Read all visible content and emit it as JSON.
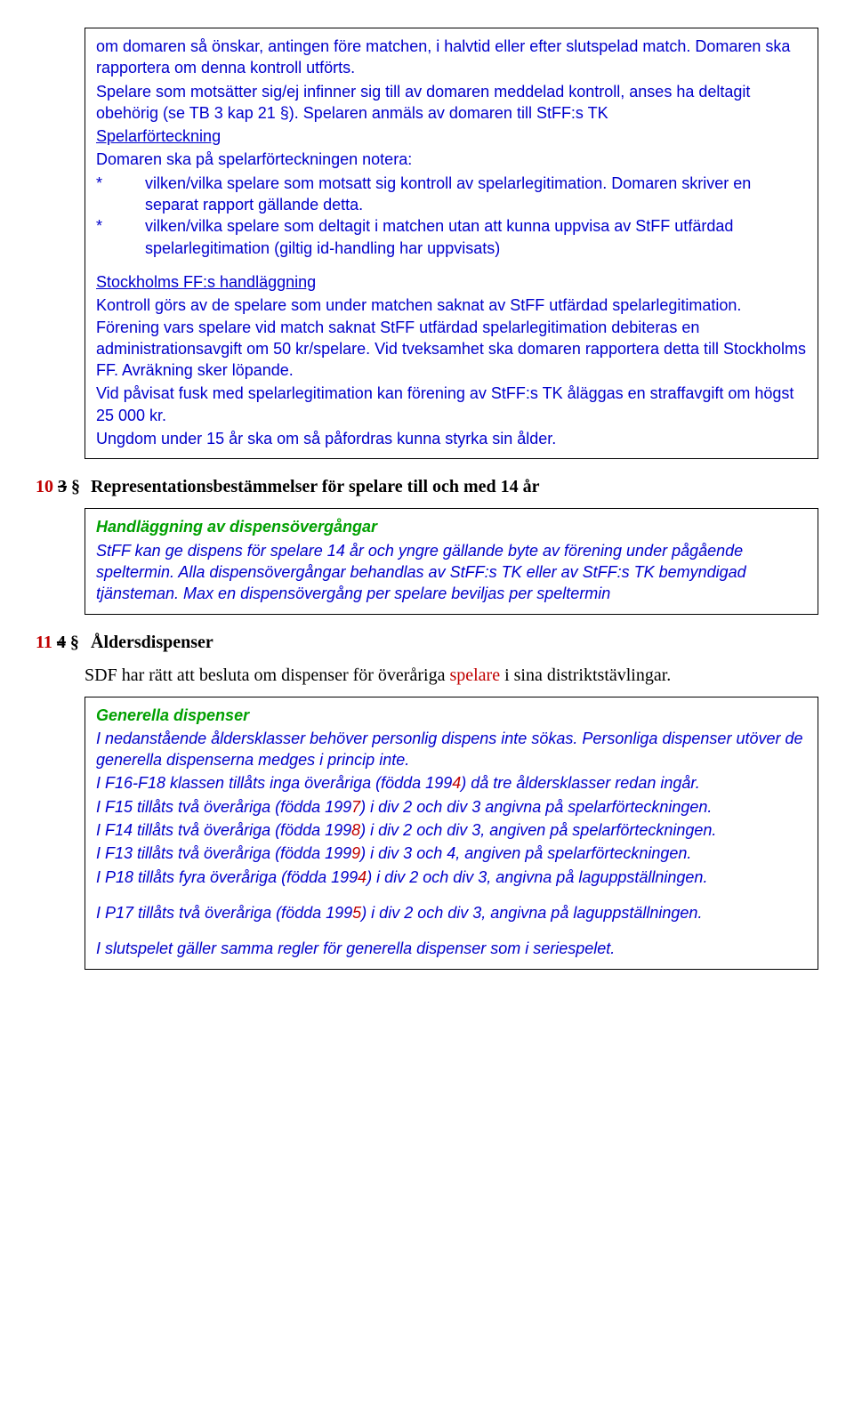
{
  "colors": {
    "blue": "#0000cc",
    "green": "#00a000",
    "red": "#c00000",
    "black": "#000000",
    "box_border": "#000000",
    "background": "#ffffff"
  },
  "typography": {
    "body_family": "Arial",
    "body_size_pt": 13.5,
    "heading_family": "Times New Roman",
    "heading_size_pt": 15
  },
  "box1": {
    "p1": "om domaren så önskar, antingen före matchen, i halvtid eller efter slutspelad match. Domaren ska rapportera om denna kontroll utförts.",
    "p2": "Spelare som motsätter sig/ej infinner sig till av domaren meddelad kontroll, anses ha deltagit obehörig (se TB 3 kap 21 §). Spelaren anmäls av domaren till StFF:s TK",
    "h_spelar": "Spelarförteckning",
    "p3": "Domaren ska på spelarförteckningen notera:",
    "star": "*",
    "s1a": "vilken/vilka spelare som motsatt sig kontroll av spelarlegitimation. Domaren skriver en separat rapport gällande detta.",
    "s1b": "vilken/vilka spelare som deltagit i matchen utan att kunna uppvisa av StFF utfärdad spelarlegitimation (giltig id-handling har uppvisats)",
    "h_stock": "Stockholms FF:s handläggning",
    "p4": "Kontroll görs av de spelare som under matchen saknat av StFF utfärdad spelarlegitimation. Förening vars spelare vid match saknat StFF utfärdad spelarlegitimation debiteras en administrationsavgift om 50 kr/spelare. Vid tveksamhet ska domaren rapportera detta till Stockholms FF. Avräkning sker löpande.",
    "p5": "Vid påvisat fusk med spelarlegitimation kan förening av StFF:s TK åläggas en straffavgift om högst 25 000 kr.",
    "p6": "Ungdom under 15 år ska om så påfordras kunna styrka sin ålder."
  },
  "sec10": {
    "num_new": "10",
    "num_old": "3",
    "sym": "§",
    "title": "Representationsbestämmelser för spelare till och med 14 år"
  },
  "box2": {
    "h": "Handläggning av dispensövergångar",
    "p": "StFF kan ge dispens för spelare 14 år och yngre gällande byte av förening under pågående speltermin. Alla dispensövergångar behandlas av StFF:s TK eller av StFF:s TK bemyndigad tjänsteman. Max en dispensövergång per spelare beviljas per speltermin"
  },
  "sec11": {
    "num_new": "11",
    "num_old": "4",
    "sym": "§",
    "title": "Åldersdispenser"
  },
  "sdf": {
    "pre": "SDF har rätt att besluta om dispenser för överåriga ",
    "word": "spelare",
    "post": " i sina distriktstävlingar."
  },
  "box3": {
    "h": "Generella dispenser",
    "p1a": "I nedanstående åldersklasser behöver personlig dispens inte sökas. Personliga dispenser utöver de generella dispenserna medges i princip inte.",
    "l_f16_a": "I F16-F18 klassen tillåts inga överåriga (födda 199",
    "l_f16_d": "4",
    "l_f16_b": ") då tre åldersklasser redan ingår.",
    "l_f15_a": "I F15 tillåts två överåriga (födda 199",
    "l_f15_d": "7",
    "l_f15_b": ") i div 2 och div 3 angivna på spelarförteckningen.",
    "l_f14_a": "I F14 tillåts två överåriga (födda 199",
    "l_f14_d": "8",
    "l_f14_b": ") i div 2 och div 3, angiven på spelarförteckningen.",
    "l_f13_a": "I F13 tillåts två överåriga (födda 199",
    "l_f13_d": "9",
    "l_f13_b": ") i div 3 och 4, angiven på spelarförteckningen.",
    "l_p18_a": "I P18 tillåts fyra överåriga (födda 199",
    "l_p18_d": "4",
    "l_p18_b": ") i div 2 och div 3, angivna på laguppställningen.",
    "l_p17_a": "I P17 tillåts två överåriga (födda 199",
    "l_p17_d": "5",
    "l_p17_b": ") i div 2 och div 3, angivna på laguppställningen.",
    "l_slut": "I slutspelet gäller samma regler för generella dispenser som i seriespelet."
  }
}
